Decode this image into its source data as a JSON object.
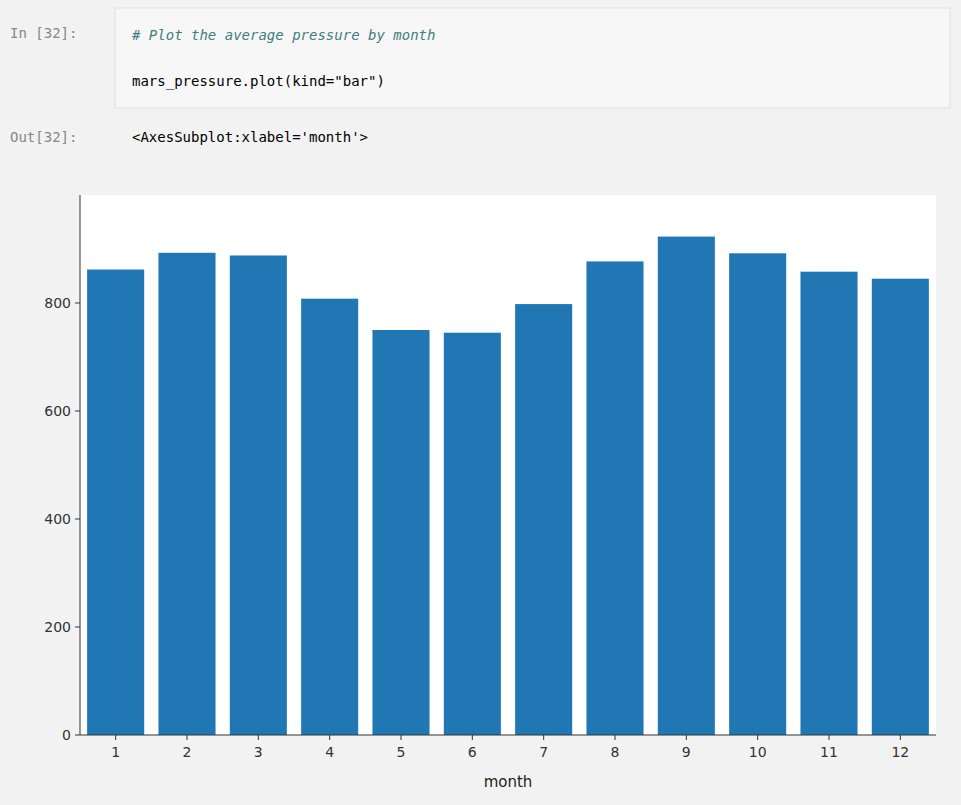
{
  "chart_data": {
    "type": "bar",
    "annotations": [
      "In [32]:",
      "# Plot the average pressure by month",
      "mars_pressure.plot(kind=\"bar\")",
      "Out[32]:",
      "<AxesSubplot:xlabel='month'>"
    ],
    "x_label": "month",
    "categories": [
      "1",
      "2",
      "3",
      "4",
      "5",
      "6",
      "7",
      "8",
      "9",
      "10",
      "11",
      "12"
    ],
    "values": [
      862,
      893,
      888,
      808,
      750,
      745,
      798,
      877,
      923,
      892,
      858,
      845
    ],
    "color": "#2077b4",
    "ylim": [
      0,
      1000
    ],
    "yticks": [
      0,
      200,
      400,
      600,
      800
    ],
    "grid": false
  }
}
